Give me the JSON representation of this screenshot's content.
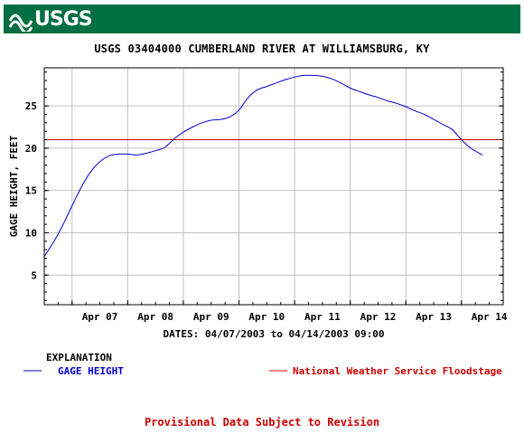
{
  "header": {
    "logo_text": "USGS",
    "bar_color": "#006f41"
  },
  "footer": {
    "notice": "Provisional Data Subject to Revision"
  },
  "legend": {
    "heading": "EXPLANATION",
    "gage_label": "GAGE HEIGHT",
    "flood_label": "National Weather Service Floodstage"
  },
  "chart_data": {
    "type": "line",
    "title": "USGS 03404000 CUMBERLAND RIVER AT WILLIAMSBURG, KY",
    "xlabel": "DATES: 04/07/2003 to 04/14/2003 09:00",
    "ylabel": "GAGE HEIGHT, FEET",
    "x_tick_labels": [
      "Apr 07",
      "Apr 08",
      "Apr 09",
      "Apr 10",
      "Apr 11",
      "Apr 12",
      "Apr 13",
      "Apr 14"
    ],
    "y_ticks": [
      5,
      10,
      15,
      20,
      25
    ],
    "xlim": [
      "2003-04-06 12:00",
      "2003-04-14 18:00"
    ],
    "ylim": [
      1.5,
      29.5
    ],
    "grid": true,
    "colors": {
      "gage_height": "#0000cc",
      "floodstage": "#cc0000",
      "grid": "#c0c0c0"
    },
    "floodstage": 21.0,
    "series": [
      {
        "name": "GAGE HEIGHT",
        "x": [
          "2003-04-06 12:00",
          "2003-04-06 16:00",
          "2003-04-06 20:00",
          "2003-04-07 00:00",
          "2003-04-07 04:00",
          "2003-04-07 08:00",
          "2003-04-07 12:00",
          "2003-04-07 16:00",
          "2003-04-07 20:00",
          "2003-04-08 00:00",
          "2003-04-08 04:00",
          "2003-04-08 08:00",
          "2003-04-08 12:00",
          "2003-04-08 16:00",
          "2003-04-08 20:00",
          "2003-04-09 00:00",
          "2003-04-09 04:00",
          "2003-04-09 08:00",
          "2003-04-09 12:00",
          "2003-04-09 16:00",
          "2003-04-09 20:00",
          "2003-04-10 00:00",
          "2003-04-10 04:00",
          "2003-04-10 08:00",
          "2003-04-10 12:00",
          "2003-04-10 16:00",
          "2003-04-10 20:00",
          "2003-04-11 00:00",
          "2003-04-11 04:00",
          "2003-04-11 08:00",
          "2003-04-11 12:00",
          "2003-04-11 16:00",
          "2003-04-11 20:00",
          "2003-04-12 00:00",
          "2003-04-12 04:00",
          "2003-04-12 08:00",
          "2003-04-12 12:00",
          "2003-04-12 16:00",
          "2003-04-12 20:00",
          "2003-04-13 00:00",
          "2003-04-13 04:00",
          "2003-04-13 08:00",
          "2003-04-13 12:00",
          "2003-04-13 16:00",
          "2003-04-13 20:00",
          "2003-04-14 00:00",
          "2003-04-14 04:00",
          "2003-04-14 09:00"
        ],
        "values": [
          7.2,
          8.9,
          10.9,
          13.2,
          15.4,
          17.2,
          18.4,
          19.1,
          19.3,
          19.3,
          19.2,
          19.4,
          19.7,
          20.1,
          21.1,
          21.9,
          22.5,
          23.0,
          23.3,
          23.4,
          23.7,
          24.5,
          26.0,
          26.9,
          27.3,
          27.7,
          28.1,
          28.4,
          28.6,
          28.6,
          28.5,
          28.2,
          27.7,
          27.1,
          26.7,
          26.3,
          26.0,
          25.6,
          25.3,
          24.9,
          24.4,
          24.0,
          23.4,
          22.8,
          22.2,
          21.0,
          20.0,
          19.2
        ]
      }
    ]
  }
}
